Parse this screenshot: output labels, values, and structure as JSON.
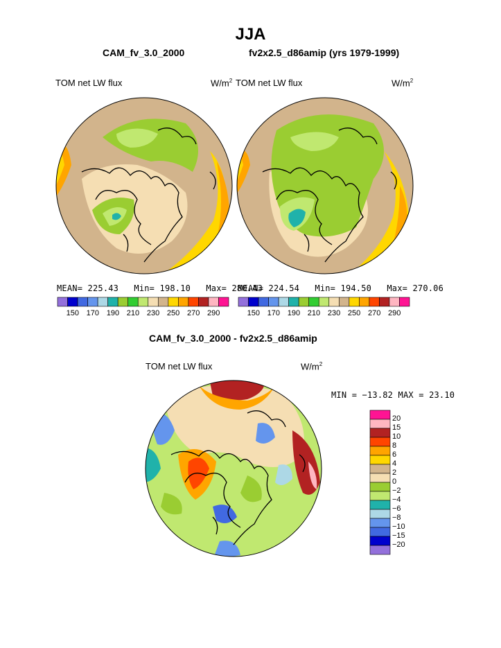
{
  "page": {
    "title": "JJA",
    "left_run": "CAM_fv_3.0_2000",
    "right_run": "fv2x2.5_d86amip (yrs 1979-1999)",
    "diff_title": "CAM_fv_3.0_2000 - fv2x2.5_d86amip"
  },
  "panels": {
    "left": {
      "field": "TOM net LW flux",
      "units": "W/m",
      "units_exp": "2",
      "mean": "MEAN= 225.43",
      "min": "Min= 198.10",
      "max": "Max= 280.43"
    },
    "right": {
      "field": "TOM net LW flux",
      "units": "W/m",
      "units_exp": "2",
      "mean": "MEAN= 224.54",
      "min": "Min= 194.50",
      "max": "Max= 270.06"
    },
    "diff": {
      "field": "TOM net LW flux",
      "units": "W/m",
      "units_exp": "2",
      "minmax": "MIN = −13.82 MAX =   23.10"
    }
  },
  "colorbar_main": {
    "colors": [
      "#9370db",
      "#0000cd",
      "#4169e1",
      "#6495ed",
      "#add8e6",
      "#20b2aa",
      "#9acd32",
      "#32cd32",
      "#c0e870",
      "#f5deb3",
      "#d2b48c",
      "#ffd700",
      "#ffa500",
      "#ff4500",
      "#b22222",
      "#ffb6c1",
      "#ff1493"
    ],
    "labels": [
      "150",
      "170",
      "190",
      "210",
      "230",
      "250",
      "270",
      "290"
    ]
  },
  "colorbar_diff": {
    "colors": [
      "#ff1493",
      "#ffb6c1",
      "#b22222",
      "#ff4500",
      "#ffa500",
      "#ffd700",
      "#d2b48c",
      "#f5deb3",
      "#9acd32",
      "#c0e870",
      "#20b2aa",
      "#add8e6",
      "#6495ed",
      "#4169e1",
      "#0000cd",
      "#9370db"
    ],
    "labels": [
      "20",
      "15",
      "10",
      "8",
      "6",
      "4",
      "2",
      "0",
      "−2",
      "−4",
      "−6",
      "−8",
      "−10",
      "−15",
      "−20"
    ]
  }
}
